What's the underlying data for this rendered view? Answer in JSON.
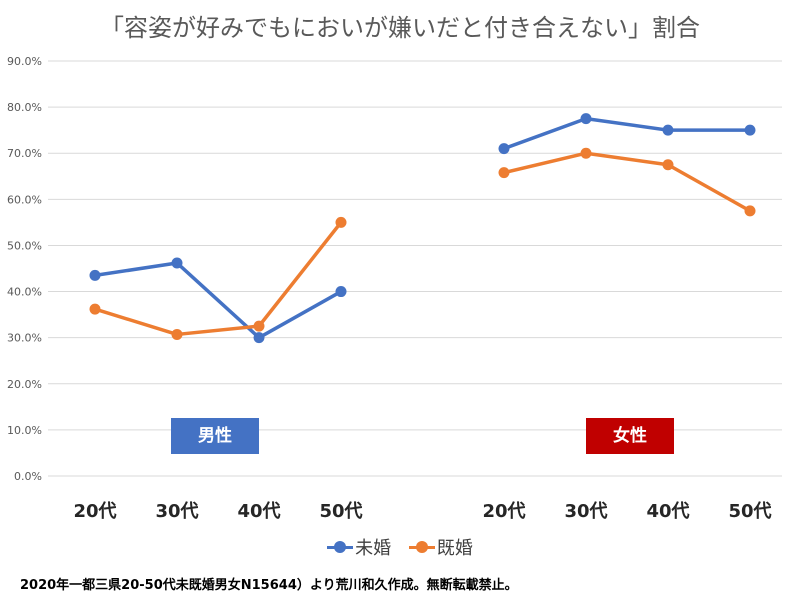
{
  "title": "「容姿が好みでもにおいが嫌いだと付き合えない」割合",
  "footer": "2020年一都三県20-50代未既婚男女N15644）より荒川和久作成。無断転載禁止。",
  "badges": {
    "male": {
      "label": "男性",
      "color": "#4472c4"
    },
    "female": {
      "label": "女性",
      "color": "#c00000"
    }
  },
  "chart_data": {
    "type": "line",
    "ylim": [
      0,
      0.9
    ],
    "yticks": [
      "0.0%",
      "10.0%",
      "20.0%",
      "30.0%",
      "40.0%",
      "50.0%",
      "60.0%",
      "70.0%",
      "80.0%",
      "90.0%"
    ],
    "grid": true,
    "legend_position": "bottom",
    "groups": [
      {
        "name": "男性",
        "categories": [
          "20代",
          "30代",
          "40代",
          "50代"
        ]
      },
      {
        "name": "女性",
        "categories": [
          "20代",
          "30代",
          "40代",
          "50代"
        ]
      }
    ],
    "series": [
      {
        "name": "未婚",
        "color": "#4472c4",
        "male": [
          0.435,
          0.462,
          0.3,
          0.4
        ],
        "female": [
          0.71,
          0.775,
          0.75,
          0.75
        ]
      },
      {
        "name": "既婚",
        "color": "#ed7d31",
        "male": [
          0.362,
          0.307,
          0.325,
          0.55
        ],
        "female": [
          0.658,
          0.7,
          0.675,
          0.575
        ]
      }
    ]
  }
}
